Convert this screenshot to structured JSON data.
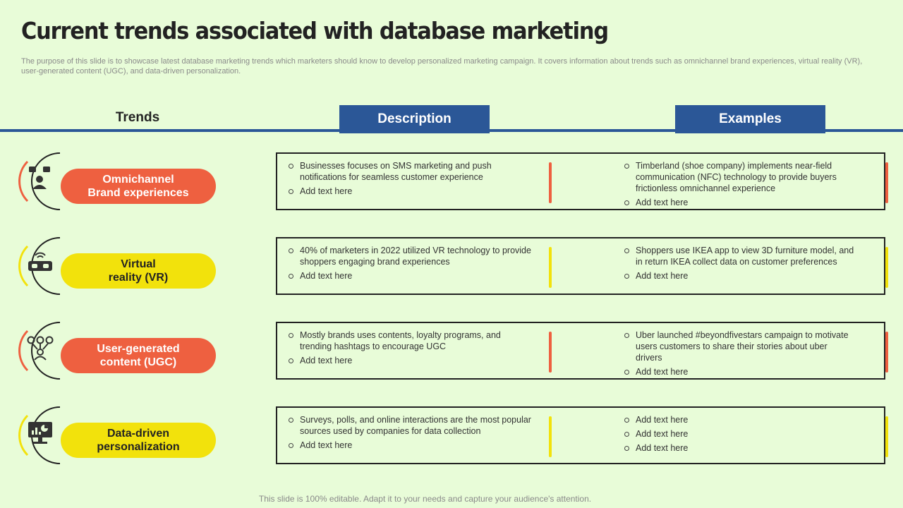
{
  "title": "Current trends associated with database marketing",
  "subtitle": "The purpose of this slide is to showcase latest database marketing trends which marketers should know to develop personalized marketing campaign. It covers information about trends such as omnichannel brand experiences, virtual reality (VR), user-generated content (UGC), and data-driven personalization.",
  "headers": {
    "trends": "Trends",
    "description": "Description",
    "examples": "Examples"
  },
  "colors": {
    "orange": "#ee6040",
    "yellow": "#f2e20c",
    "blue": "#2b5797",
    "background": "#e8fcd8"
  },
  "rows": [
    {
      "trend": "Omnichannel\nBrand experiences",
      "icon": "people-chat-icon",
      "color": "orange",
      "description": [
        "Businesses focuses on SMS marketing and push notifications for seamless customer experience",
        "Add text here"
      ],
      "examples": [
        "Timberland (shoe company) implements near-field communication (NFC) technology to provide buyers frictionless omnichannel experience",
        "Add text here"
      ]
    },
    {
      "trend": "Virtual\nreality (VR)",
      "icon": "vr-headset-icon",
      "color": "yellow",
      "description": [
        "40% of marketers in 2022 utilized VR technology to provide shoppers engaging brand experiences",
        "Add text here"
      ],
      "examples": [
        "Shoppers use IKEA app to view 3D furniture model, and in return IKEA collect data on customer preferences",
        "Add text here"
      ]
    },
    {
      "trend": "User-generated\ncontent (UGC)",
      "icon": "user-network-icon",
      "color": "orange",
      "description": [
        "Mostly brands uses contents, loyalty programs, and trending hashtags to encourage UGC",
        "Add text here"
      ],
      "examples": [
        "Uber launched #beyondfivestars campaign to motivate users customers to share their stories about uber drivers",
        "Add text here"
      ]
    },
    {
      "trend": "Data-driven\npersonalization",
      "icon": "monitor-dashboard-icon",
      "color": "yellow",
      "description": [
        "Surveys, polls, and online interactions are the most popular sources used by companies for data collection",
        "Add text here"
      ],
      "examples": [
        "Add text here",
        "Add text here",
        "Add text here"
      ]
    }
  ],
  "footer": "This slide is 100% editable. Adapt it to your needs and capture your audience's attention."
}
